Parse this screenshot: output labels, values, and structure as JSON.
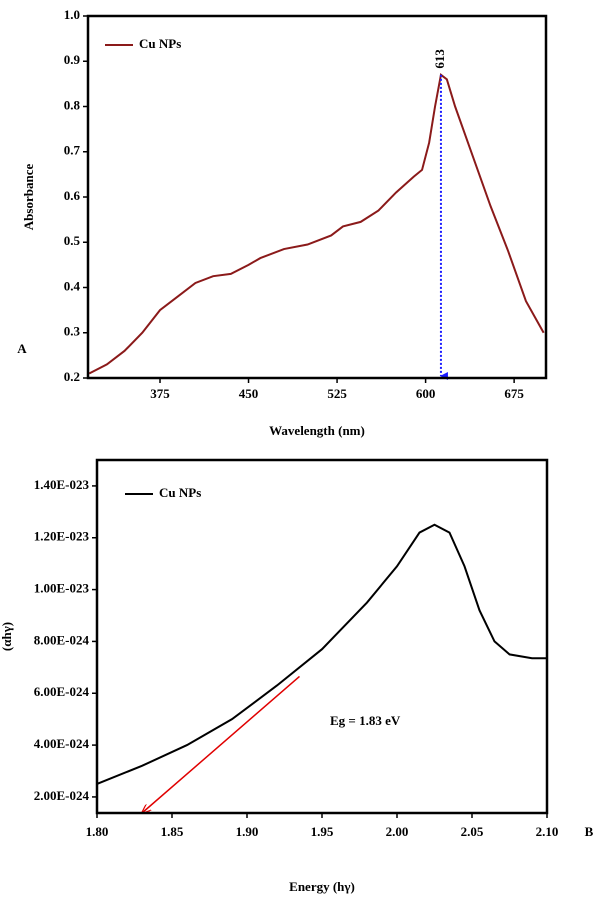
{
  "chart_data": [
    {
      "type": "line",
      "panel": "A",
      "x_label": "Wavelength (nm)",
      "y_label": "Absorbance",
      "legend": "upper left",
      "x": [
        315,
        330,
        345,
        360,
        375,
        390,
        405,
        420,
        435,
        450,
        460,
        480,
        500,
        520,
        530,
        545,
        560,
        575,
        590,
        597,
        603,
        608,
        613,
        618,
        625,
        640,
        655,
        670,
        685,
        700
      ],
      "series": [
        {
          "name": "Cu NPs",
          "color": "#8b1a1a",
          "values": [
            0.21,
            0.23,
            0.26,
            0.3,
            0.35,
            0.38,
            0.41,
            0.425,
            0.43,
            0.45,
            0.465,
            0.485,
            0.495,
            0.515,
            0.535,
            0.545,
            0.57,
            0.61,
            0.645,
            0.66,
            0.72,
            0.8,
            0.87,
            0.86,
            0.8,
            0.69,
            0.58,
            0.48,
            0.37,
            0.3
          ]
        }
      ],
      "xlim": [
        314,
        702
      ],
      "xticks": [
        375,
        450,
        525,
        600,
        675
      ],
      "ylim": [
        0.2,
        1.0
      ],
      "yticks": [
        0.2,
        0.3,
        0.4,
        0.5,
        0.6,
        0.7,
        0.8,
        0.9,
        {
          "value": 1.0,
          "label": "1.0"
        }
      ],
      "peak": {
        "x": 613,
        "y": 0.87,
        "label": "613",
        "color": "#1a1aff"
      }
    },
    {
      "type": "line",
      "panel": "B",
      "x_label": "Energy (hγ)",
      "y_label": "(αhγ)",
      "legend": "upper left",
      "x": [
        1.8,
        1.83,
        1.86,
        1.89,
        1.92,
        1.95,
        1.98,
        2.0,
        2.015,
        2.025,
        2.035,
        2.045,
        2.055,
        2.065,
        2.075,
        2.09,
        2.1
      ],
      "series": [
        {
          "name": "Cu NPs",
          "color": "#000000",
          "values": [
            2.5e-24,
            3.2e-24,
            4e-24,
            5e-24,
            6.3e-24,
            7.7e-24,
            9.5e-24,
            1.09e-23,
            1.22e-23,
            1.25e-23,
            1.22e-23,
            1.09e-23,
            9.2e-24,
            8e-24,
            7.5e-24,
            7.35e-24,
            7.35e-24
          ]
        }
      ],
      "xlim": [
        1.8,
        2.1
      ],
      "xticks": [
        {
          "value": 1.8,
          "label": "1.80"
        },
        1.85,
        {
          "value": 1.9,
          "label": "1.90"
        },
        1.95,
        {
          "value": 2.0,
          "label": "2.00"
        },
        2.05,
        {
          "value": 2.1,
          "label": "2.10"
        }
      ],
      "ylim": [
        1.38e-24,
        1.5e-23
      ],
      "yticks": [
        {
          "value": 2e-24,
          "label": "2.00E-024"
        },
        {
          "value": 4e-24,
          "label": "4.00E-024"
        },
        {
          "value": 6e-24,
          "label": "6.00E-024"
        },
        {
          "value": 8e-24,
          "label": "8.00E-024"
        },
        {
          "value": 1e-23,
          "label": "1.00E-023"
        },
        {
          "value": 1.2e-23,
          "label": "1.20E-023"
        },
        {
          "value": 1.4e-23,
          "label": "1.40E-023"
        }
      ],
      "tangent": {
        "x": [
          1.935,
          1.83
        ],
        "y": [
          6.65e-24,
          1.38e-24
        ],
        "color": "#e00000"
      },
      "annotation": "Eg = 1.83 eV"
    }
  ]
}
